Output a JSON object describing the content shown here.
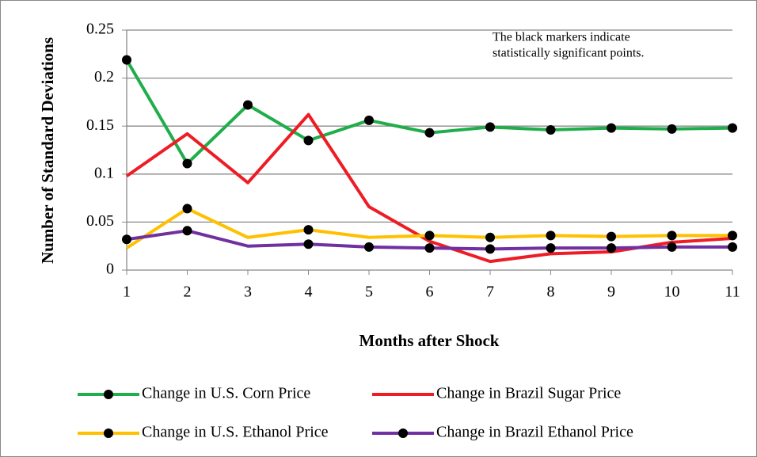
{
  "chart_data": {
    "type": "line",
    "x_label": "Months after Shock",
    "y_label": "Number of Standard Deviations",
    "annotation": [
      "The black markers indicate",
      "statistically significant points."
    ],
    "x": [
      1,
      2,
      3,
      4,
      5,
      6,
      7,
      8,
      9,
      10,
      11
    ],
    "xlim": [
      1,
      11
    ],
    "xticks": [
      1,
      2,
      3,
      4,
      5,
      6,
      7,
      8,
      9,
      10,
      11
    ],
    "ylim": [
      0,
      0.25
    ],
    "yticks": [
      0,
      0.05,
      0.1,
      0.15,
      0.2,
      0.25
    ],
    "grid": true,
    "legend": "bottom",
    "marker_color": "#000000",
    "series": [
      {
        "name": "Change in U.S. Corn Price",
        "color": "#1fae4b",
        "values": [
          0.219,
          0.111,
          0.172,
          0.135,
          0.156,
          0.143,
          0.149,
          0.146,
          0.148,
          0.147,
          0.148
        ],
        "significant": [
          true,
          true,
          true,
          true,
          true,
          true,
          true,
          true,
          true,
          true,
          true
        ]
      },
      {
        "name": "Change in Brazil Sugar Price",
        "color": "#ee1c24",
        "values": [
          0.098,
          0.142,
          0.091,
          0.162,
          0.066,
          0.03,
          0.009,
          0.017,
          0.019,
          0.029,
          0.033
        ],
        "significant": [
          false,
          false,
          false,
          false,
          false,
          false,
          false,
          false,
          false,
          false,
          false
        ]
      },
      {
        "name": "Change in U.S. Ethanol Price",
        "color": "#ffc000",
        "values": [
          0.023,
          0.064,
          0.034,
          0.042,
          0.034,
          0.036,
          0.034,
          0.036,
          0.035,
          0.036,
          0.036
        ],
        "significant": [
          false,
          true,
          false,
          true,
          false,
          true,
          true,
          true,
          true,
          true,
          true
        ]
      },
      {
        "name": "Change in Brazil Ethanol Price",
        "color": "#7030a0",
        "values": [
          0.032,
          0.041,
          0.025,
          0.027,
          0.024,
          0.023,
          0.022,
          0.023,
          0.023,
          0.024,
          0.024
        ],
        "significant": [
          true,
          true,
          false,
          true,
          true,
          true,
          true,
          true,
          true,
          true,
          true
        ]
      }
    ]
  }
}
